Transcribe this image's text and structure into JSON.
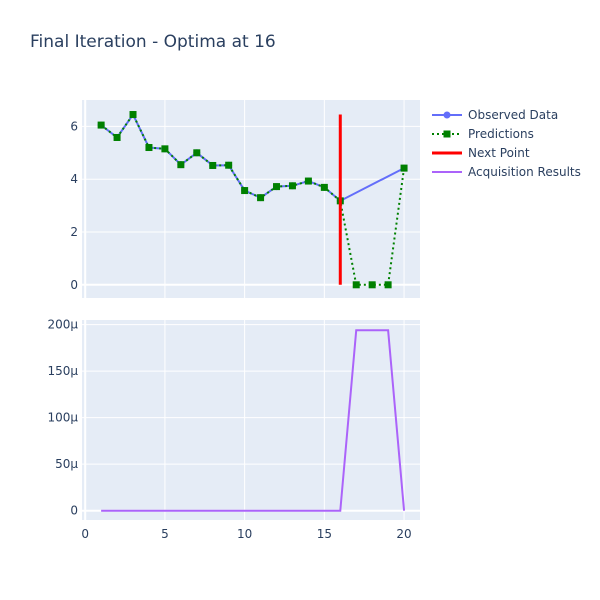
{
  "title": "Final Iteration - Optima at 16",
  "colors": {
    "plot_bg": "#e5ecf6",
    "grid": "#ffffff",
    "text": "#2a3f5f",
    "observed": "#636efa",
    "predictions": "#008000",
    "next_point": "#ff0000",
    "acquisition": "#ab63fa"
  },
  "chart_data": [
    {
      "type": "line",
      "panel": "top",
      "xlim": [
        -0.2,
        21.0
      ],
      "ylim": [
        -0.5,
        7.0
      ],
      "x_ticks": [
        "0",
        "5",
        "10",
        "15",
        "20"
      ],
      "y_ticks": [
        "0",
        "2",
        "4",
        "6"
      ],
      "grid": true,
      "legend": "top-right, outside plot",
      "series": [
        {
          "name": "Observed Data",
          "mode": "lines+markers",
          "x": [
            1,
            2,
            3,
            4,
            5,
            6,
            7,
            8,
            9,
            10,
            11,
            12,
            13,
            14,
            15,
            16,
            20
          ],
          "y": [
            6.05,
            5.58,
            6.45,
            5.2,
            5.15,
            4.55,
            5.0,
            4.52,
            4.53,
            3.57,
            3.3,
            3.72,
            3.75,
            3.93,
            3.69,
            3.18,
            4.42
          ]
        },
        {
          "name": "Predictions",
          "mode": "dotted lines+square markers",
          "x": [
            1,
            2,
            3,
            4,
            5,
            6,
            7,
            8,
            9,
            10,
            11,
            12,
            13,
            14,
            15,
            16,
            17,
            18,
            19,
            20
          ],
          "y": [
            6.05,
            5.58,
            6.45,
            5.2,
            5.15,
            4.55,
            5.0,
            4.52,
            4.53,
            3.57,
            3.3,
            3.72,
            3.75,
            3.93,
            3.69,
            3.18,
            0.0,
            0.0,
            0.0,
            4.42
          ]
        },
        {
          "name": "Next Point",
          "mode": "vertical line",
          "x": [
            16,
            16
          ],
          "y": [
            0.0,
            6.45
          ]
        }
      ]
    },
    {
      "type": "line",
      "panel": "bottom",
      "xlim": [
        -0.2,
        21.0
      ],
      "ylim": [
        -10,
        205
      ],
      "x_ticks": [
        "0",
        "5",
        "10",
        "15",
        "20"
      ],
      "y_ticks": [
        "0",
        "50μ",
        "100μ",
        "150μ",
        "200μ"
      ],
      "grid": true,
      "series": [
        {
          "name": "Acquisition Results",
          "mode": "lines",
          "unit": "μ",
          "x": [
            1,
            2,
            3,
            4,
            5,
            6,
            7,
            8,
            9,
            10,
            11,
            12,
            13,
            14,
            15,
            16,
            17,
            18,
            19,
            20
          ],
          "y": [
            0,
            0,
            0,
            0,
            0,
            0,
            0,
            0,
            0,
            0,
            0,
            0,
            0,
            0,
            0,
            0,
            194,
            194,
            194,
            0
          ]
        }
      ]
    }
  ]
}
